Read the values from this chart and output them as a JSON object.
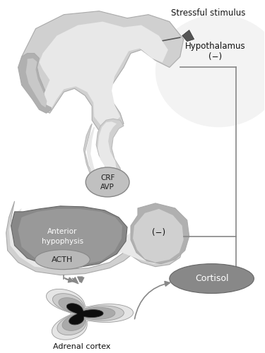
{
  "bg_color": "#ffffff",
  "labels": {
    "stressful_stimulus": "Stressful stimulus",
    "hypothalamus": "Hypothalamus",
    "hypothalamus_neg": "(−)",
    "crf_avp_line1": "CRF",
    "crf_avp_line2": "AVP",
    "anterior_line1": "Anterior",
    "anterior_line2": "hypophysis",
    "anterior_neg": "(−)",
    "acth": "ACTH",
    "cortisol": "Cortisol",
    "adrenal_cortex": "Adrenal cortex"
  },
  "colors": {
    "body_lightest": "#e8e8e8",
    "body_light": "#d0d0d0",
    "body_mid": "#b0b0b0",
    "body_dark": "#888888",
    "body_darker": "#666666",
    "dark_region": "#111111",
    "line_color": "#888888",
    "arrow_color": "#888888",
    "text_color": "#111111",
    "white": "#ffffff"
  }
}
